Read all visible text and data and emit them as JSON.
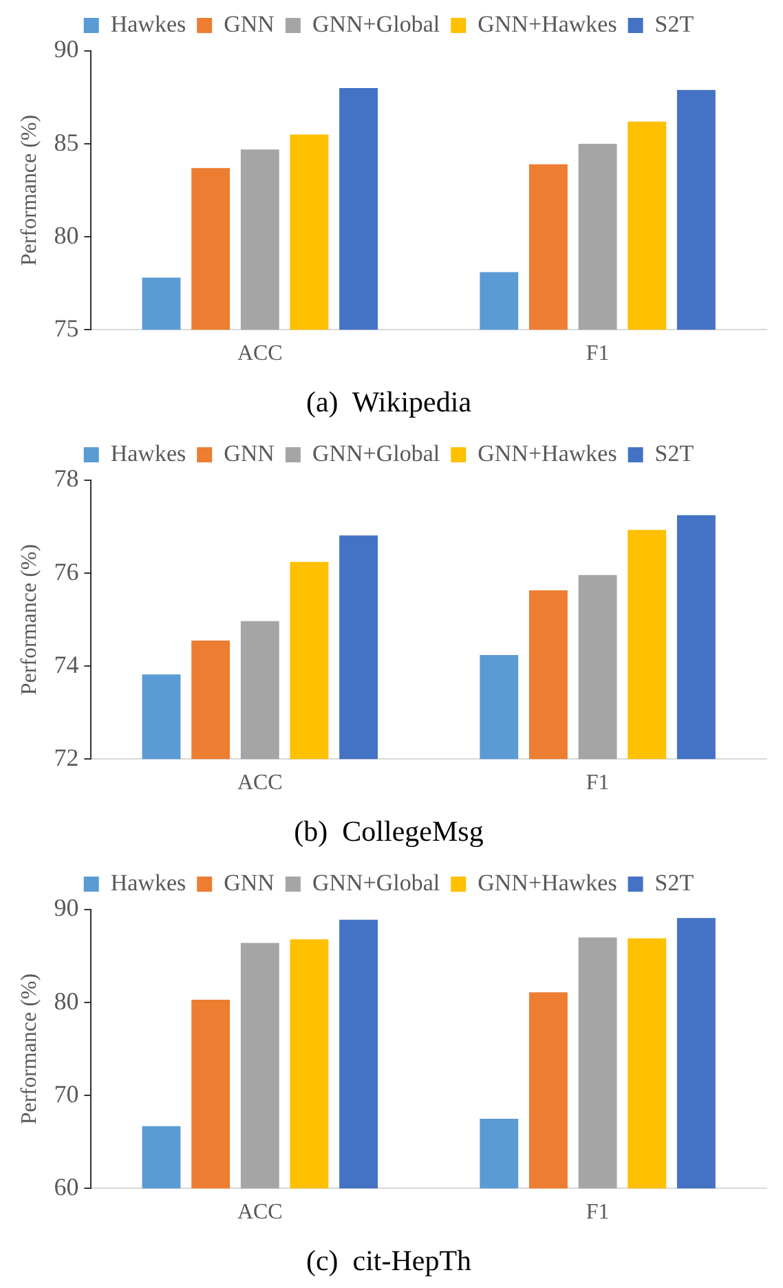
{
  "chart_data": [
    {
      "type": "bar",
      "title": "(a)  Wikipedia",
      "ylabel": "Performance (%)",
      "categories": [
        "ACC",
        "F1"
      ],
      "ylim": [
        75,
        90
      ],
      "yticks": [
        75,
        80,
        85,
        90
      ],
      "grid": false,
      "legend": "top",
      "series": [
        {
          "name": "Hawkes",
          "color": "#5b9bd5",
          "values": [
            77.8,
            78.1
          ]
        },
        {
          "name": "GNN",
          "color": "#ed7d31",
          "values": [
            83.7,
            83.9
          ]
        },
        {
          "name": "GNN+Global",
          "color": "#a5a5a5",
          "values": [
            84.7,
            85.0
          ]
        },
        {
          "name": "GNN+Hawkes",
          "color": "#ffc000",
          "values": [
            85.5,
            86.2
          ]
        },
        {
          "name": "S2T",
          "color": "#4472c4",
          "values": [
            88.0,
            87.9
          ]
        }
      ]
    },
    {
      "type": "bar",
      "title": "(b)  CollegeMsg",
      "ylabel": "Performance (%)",
      "categories": [
        "ACC",
        "F1"
      ],
      "ylim": [
        72,
        78
      ],
      "yticks": [
        72,
        74,
        76,
        78
      ],
      "grid": false,
      "legend": "top",
      "series": [
        {
          "name": "Hawkes",
          "color": "#5b9bd5",
          "values": [
            73.82,
            74.24
          ]
        },
        {
          "name": "GNN",
          "color": "#ed7d31",
          "values": [
            74.55,
            75.63
          ]
        },
        {
          "name": "GNN+Global",
          "color": "#a5a5a5",
          "values": [
            74.97,
            75.96
          ]
        },
        {
          "name": "GNN+Hawkes",
          "color": "#ffc000",
          "values": [
            76.24,
            76.93
          ]
        },
        {
          "name": "S2T",
          "color": "#4472c4",
          "values": [
            76.81,
            77.25
          ]
        }
      ]
    },
    {
      "type": "bar",
      "title": "(c)  cit-HepTh",
      "ylabel": "Performance (%)",
      "categories": [
        "ACC",
        "F1"
      ],
      "ylim": [
        60,
        90
      ],
      "yticks": [
        60,
        70,
        80,
        90
      ],
      "grid": false,
      "legend": "top",
      "series": [
        {
          "name": "Hawkes",
          "color": "#5b9bd5",
          "values": [
            66.7,
            67.5
          ]
        },
        {
          "name": "GNN",
          "color": "#ed7d31",
          "values": [
            80.3,
            81.1
          ]
        },
        {
          "name": "GNN+Global",
          "color": "#a5a5a5",
          "values": [
            86.4,
            87.0
          ]
        },
        {
          "name": "GNN+Hawkes",
          "color": "#ffc000",
          "values": [
            86.8,
            86.9
          ]
        },
        {
          "name": "S2T",
          "color": "#4472c4",
          "values": [
            88.9,
            89.1
          ]
        }
      ]
    }
  ]
}
